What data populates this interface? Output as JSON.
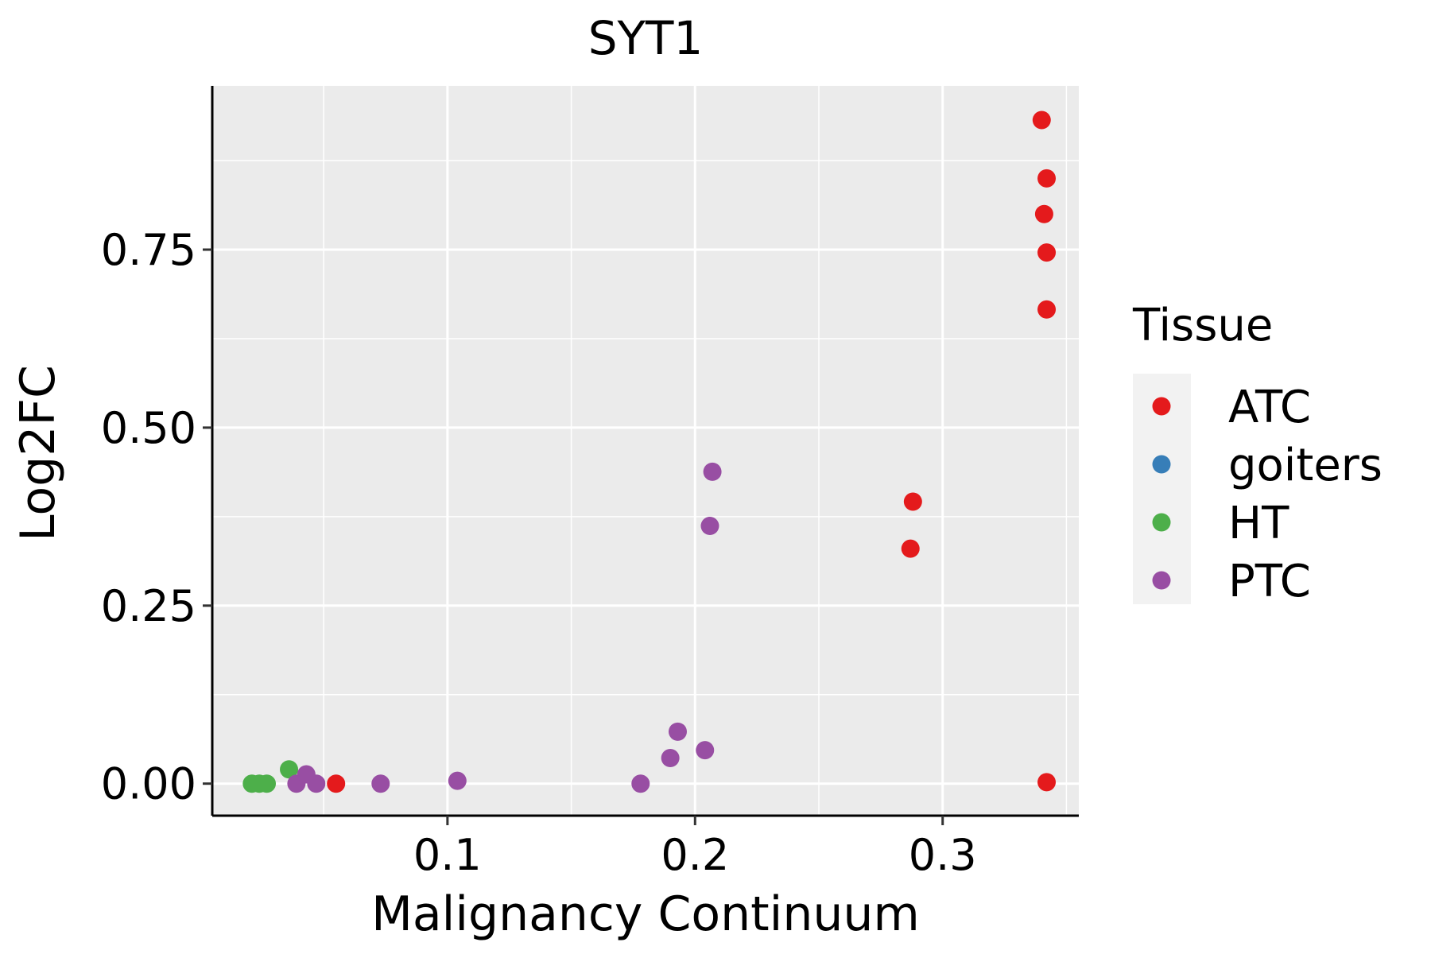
{
  "chart_data": {
    "type": "scatter",
    "title": "SYT1",
    "xlabel": "Malignancy Continuum",
    "ylabel": "Log2FC",
    "xlim": [
      0.005,
      0.355
    ],
    "ylim": [
      -0.045,
      0.98
    ],
    "x_major_ticks": [
      0.1,
      0.2,
      0.3
    ],
    "x_minor_ticks": [
      0.05,
      0.15,
      0.25,
      0.35
    ],
    "x_tick_labels": [
      "0.1",
      "0.2",
      "0.3"
    ],
    "y_major_ticks": [
      0,
      0.25,
      0.5,
      0.75
    ],
    "y_minor_ticks": [
      0.125,
      0.375,
      0.625,
      0.875
    ],
    "y_tick_labels": [
      "0.00",
      "0.25",
      "0.50",
      "0.75"
    ],
    "grid": true,
    "legend": {
      "title": "Tissue",
      "position": "right",
      "entries": [
        {
          "name": "ATC",
          "color": "#E41A1C"
        },
        {
          "name": "goiters",
          "color": "#377EB8"
        },
        {
          "name": "HT",
          "color": "#4DAF4A"
        },
        {
          "name": "PTC",
          "color": "#984EA3"
        }
      ]
    },
    "series": [
      {
        "name": "HT",
        "color": "#4DAF4A",
        "points": [
          {
            "x": 0.021,
            "y": 0.0
          },
          {
            "x": 0.024,
            "y": 0.0
          },
          {
            "x": 0.027,
            "y": 0.0
          },
          {
            "x": 0.036,
            "y": 0.02
          }
        ]
      },
      {
        "name": "PTC",
        "color": "#984EA3",
        "points": [
          {
            "x": 0.039,
            "y": 0.0
          },
          {
            "x": 0.043,
            "y": 0.013
          },
          {
            "x": 0.047,
            "y": 0.0
          },
          {
            "x": 0.073,
            "y": 0.0
          },
          {
            "x": 0.104,
            "y": 0.004
          },
          {
            "x": 0.178,
            "y": 0.0
          },
          {
            "x": 0.19,
            "y": 0.036
          },
          {
            "x": 0.193,
            "y": 0.073
          },
          {
            "x": 0.204,
            "y": 0.047
          },
          {
            "x": 0.206,
            "y": 0.362
          },
          {
            "x": 0.207,
            "y": 0.438
          }
        ]
      },
      {
        "name": "ATC",
        "color": "#E41A1C",
        "points": [
          {
            "x": 0.055,
            "y": 0.0
          },
          {
            "x": 0.287,
            "y": 0.33
          },
          {
            "x": 0.288,
            "y": 0.396
          },
          {
            "x": 0.34,
            "y": 0.932
          },
          {
            "x": 0.341,
            "y": 0.8
          },
          {
            "x": 0.342,
            "y": 0.85
          },
          {
            "x": 0.342,
            "y": 0.746
          },
          {
            "x": 0.342,
            "y": 0.666
          },
          {
            "x": 0.342,
            "y": 0.002
          }
        ]
      }
    ]
  }
}
